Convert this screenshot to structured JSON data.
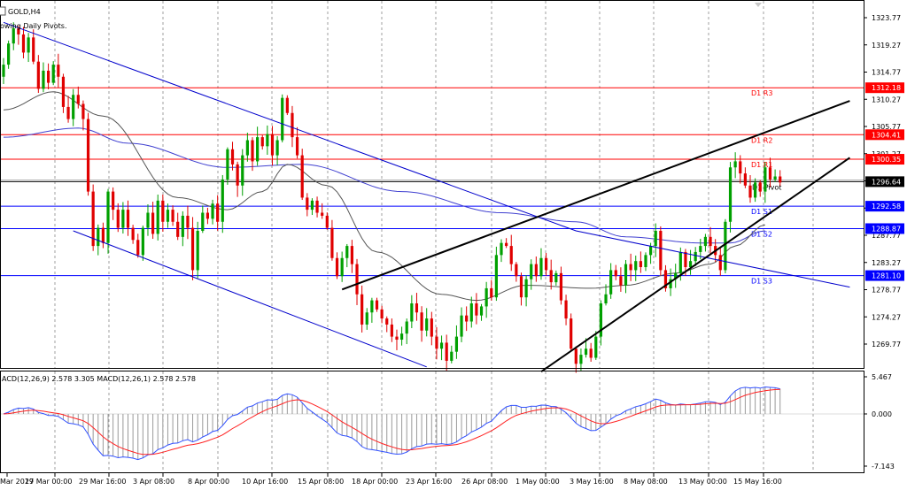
{
  "header": {
    "symbol": "GOLD,H4",
    "indicator_note": "owing Daily Pivots."
  },
  "colors": {
    "bull_candle": "#00a000",
    "bear_candle": "#e00000",
    "pivot_resistance": "#ff0000",
    "pivot_support": "#0000ff",
    "trend_channel": "#0000cc",
    "wedge_lines": "#000000",
    "ma_fast": "#555555",
    "ma_slow": "#4040d0",
    "macd_line": "#3050ff",
    "macd_signal": "#ff2020",
    "macd_hist": "#9a9a9a"
  },
  "chart_data": [
    {
      "type": "candlestick",
      "name": "GOLD,H4",
      "ylim": [
        1265.2,
        1325.2
      ],
      "price_ticks": [
        "1323.77",
        "1319.27",
        "1314.77",
        "1310.27",
        "1305.77",
        "1301.27",
        "1296.77",
        "1292.27",
        "1287.77",
        "1283.27",
        "1278.77",
        "1274.27",
        "1269.77"
      ],
      "time_ticks": [
        "Mar 2019",
        "27 Mar 00:00",
        "29 Mar 16:00",
        "3 Apr 08:00",
        "8 Apr 00:00",
        "10 Apr 16:00",
        "15 Apr 08:00",
        "18 Apr 00:00",
        "23 Apr 16:00",
        "26 Apr 08:00",
        "1 May 00:00",
        "3 May 16:00",
        "8 May 08:00",
        "13 May 00:00",
        "15 May 16:00"
      ],
      "current_price": "1296.64",
      "pivot_levels": [
        {
          "label": "D1 R3",
          "value": 1312.18,
          "value_label": "1312.18",
          "kind": "resistance"
        },
        {
          "label": "D1 R2",
          "value": 1304.41,
          "value_label": "1304.41",
          "kind": "resistance"
        },
        {
          "label": "D1 R1",
          "value": 1300.35,
          "value_label": "1300.35",
          "kind": "resistance"
        },
        {
          "label": "D1 Pivot",
          "value": 1296.64,
          "value_label": "",
          "kind": "pivot"
        },
        {
          "label": "D1 S1",
          "value": 1292.58,
          "value_label": "1292.58",
          "kind": "support"
        },
        {
          "label": "D1 S2",
          "value": 1288.87,
          "value_label": "1288.87",
          "kind": "support"
        },
        {
          "label": "D1 S3",
          "value": 1281.1,
          "value_label": "1281.10",
          "kind": "support"
        }
      ],
      "close": [
        1316.0,
        1319.5,
        1322.0,
        1321.0,
        1318.0,
        1320.5,
        1316.5,
        1312.0,
        1315.0,
        1313.0,
        1316.0,
        1314.0,
        1309.0,
        1307.0,
        1311.0,
        1309.5,
        1307.0,
        1295.0,
        1286.0,
        1289.0,
        1286.5,
        1295.0,
        1292.0,
        1289.0,
        1292.0,
        1289.0,
        1287.0,
        1284.5,
        1289.0,
        1291.5,
        1288.0,
        1293.5,
        1290.0,
        1292.0,
        1290.0,
        1287.5,
        1291.0,
        1289.0,
        1282.0,
        1288.5,
        1291.5,
        1290.5,
        1293.0,
        1290.0,
        1297.0,
        1302.0,
        1299.5,
        1296.0,
        1301.0,
        1303.5,
        1300.0,
        1304.0,
        1302.5,
        1304.5,
        1301.0,
        1303.5,
        1310.5,
        1308.0,
        1304.0,
        1301.0,
        1294.0,
        1292.0,
        1293.5,
        1291.5,
        1291.0,
        1289.0,
        1284.0,
        1281.0,
        1284.0,
        1286.0,
        1283.0,
        1278.0,
        1273.0,
        1275.0,
        1277.0,
        1275.5,
        1274.0,
        1273.0,
        1271.0,
        1270.5,
        1271.5,
        1273.5,
        1276.5,
        1275.0,
        1272.0,
        1274.0,
        1271.0,
        1269.0,
        1270.0,
        1267.0,
        1268.5,
        1271.0,
        1274.5,
        1273.5,
        1276.5,
        1274.5,
        1276.0,
        1279.0,
        1277.5,
        1284.5,
        1286.5,
        1286.0,
        1283.0,
        1281.0,
        1277.5,
        1280.5,
        1283.0,
        1281.0,
        1284.0,
        1282.0,
        1280.0,
        1281.5,
        1277.0,
        1274.0,
        1269.0,
        1266.5,
        1268.0,
        1269.0,
        1267.5,
        1271.0,
        1276.5,
        1278.0,
        1282.0,
        1281.0,
        1279.5,
        1283.0,
        1282.0,
        1283.5,
        1282.5,
        1284.5,
        1286.0,
        1288.5,
        1282.0,
        1279.0,
        1280.5,
        1281.5,
        1285.0,
        1282.5,
        1283.5,
        1285.0,
        1286.0,
        1287.5,
        1286.0,
        1284.5,
        1282.0,
        1290.0,
        1299.0,
        1300.0,
        1298.0,
        1296.0,
        1294.0,
        1296.5,
        1295.0,
        1299.0,
        1297.0,
        1297.5,
        1296.5
      ],
      "ma_fast_anchors": [
        [
          0,
          1308.5
        ],
        [
          10,
          1311.5
        ],
        [
          20,
          1307.5
        ],
        [
          35,
          1294.0
        ],
        [
          45,
          1292.0
        ],
        [
          52,
          1295.0
        ],
        [
          57,
          1299.5
        ],
        [
          65,
          1296.0
        ],
        [
          75,
          1285.0
        ],
        [
          88,
          1278.0
        ],
        [
          95,
          1277.0
        ],
        [
          105,
          1279.5
        ],
        [
          118,
          1279.0
        ],
        [
          125,
          1279.5
        ],
        [
          135,
          1281.5
        ],
        [
          142,
          1283.0
        ],
        [
          147,
          1286.0
        ],
        [
          153,
          1289.5
        ]
      ],
      "ma_slow_anchors": [
        [
          0,
          1304.0
        ],
        [
          15,
          1305.5
        ],
        [
          25,
          1303.0
        ],
        [
          45,
          1299.0
        ],
        [
          60,
          1299.5
        ],
        [
          80,
          1295.0
        ],
        [
          100,
          1291.5
        ],
        [
          115,
          1290.0
        ],
        [
          125,
          1287.5
        ],
        [
          140,
          1286.5
        ],
        [
          146,
          1286.5
        ],
        [
          153,
          1288.5
        ]
      ],
      "trend_lines": {
        "channel_upper": [
          [
            0,
            1323.0
          ],
          [
            115,
            1288.5
          ],
          [
            170,
            1279.2
          ]
        ],
        "channel_lower": [
          [
            14,
            1288.5
          ],
          [
            85,
            1266.0
          ]
        ],
        "wedge_upper": [
          [
            68,
            1278.8
          ],
          [
            170,
            1310.0
          ]
        ],
        "wedge_lower": [
          [
            108,
            1265.2
          ],
          [
            170,
            1300.6
          ]
        ]
      }
    },
    {
      "type": "macd",
      "name": "MACD(12,26,9) 2.578 3.305 MACD(12,26,1) 2.578 2.578",
      "label_visible": "ACD(12,26,9) 2.578 3.305 MACD(12,26,1) 2.578 2.578",
      "params": {
        "fast": 12,
        "slow": 26,
        "signal": 9
      },
      "macd": 2.578,
      "signal_value": 3.305,
      "ylim": [
        -7.6,
        5.6
      ],
      "ticks": [
        "5.467",
        "0.000",
        "-7.143"
      ]
    }
  ]
}
